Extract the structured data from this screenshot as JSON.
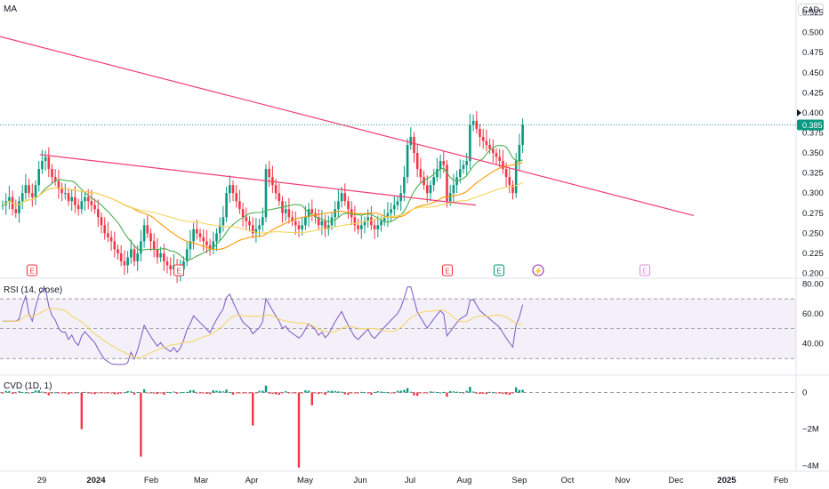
{
  "main_pane": {
    "indicator_label": "MA",
    "currency": "CAD",
    "current_price": "0.385",
    "marker_price": "0.400"
  },
  "rsi_pane": {
    "label": "RSI (14, close)"
  },
  "cvd_pane": {
    "label": "CVD (1D, 1)"
  },
  "event_markers": [
    {
      "letter": "E",
      "color": "#f23645"
    },
    {
      "letter": "E",
      "color": "#f23645"
    },
    {
      "letter": "E",
      "color": "#f23645"
    },
    {
      "letter": "E",
      "color": "#089981"
    },
    {
      "letter": "⚡",
      "color": "#9c27b0"
    },
    {
      "letter": "E",
      "color": "#e08ee0"
    }
  ],
  "colors": {
    "up": "#089981",
    "down": "#f23645",
    "trendline": "#f23f76",
    "ma_fast": "#4caf50",
    "ma_mid": "#ff9800",
    "ma_slow": "#f5d45c",
    "rsi": "#7e57c2",
    "rsi_ma": "#f5d45c"
  },
  "chart_data": [
    {
      "type": "candlestick",
      "title": "MA",
      "currency": "CAD",
      "x_ticks": [
        "29",
        "2024",
        "Feb",
        "Mar",
        "Apr",
        "May",
        "Jun",
        "Jul",
        "Aug",
        "Sep",
        "Oct",
        "Nov",
        "Dec",
        "2025",
        "Feb"
      ],
      "y_ticks": [
        "0.200",
        "0.225",
        "0.250",
        "0.275",
        "0.300",
        "0.325",
        "0.350",
        "0.375",
        "0.400",
        "0.425",
        "0.450",
        "0.475",
        "0.500",
        "0.525"
      ],
      "ylim": [
        0.195,
        0.535
      ],
      "last_close": 0.385,
      "closes": [
        0.285,
        0.29,
        0.295,
        0.28,
        0.275,
        0.29,
        0.3,
        0.31,
        0.3,
        0.295,
        0.31,
        0.33,
        0.34,
        0.345,
        0.33,
        0.32,
        0.315,
        0.305,
        0.3,
        0.3,
        0.29,
        0.295,
        0.285,
        0.28,
        0.29,
        0.295,
        0.29,
        0.285,
        0.28,
        0.27,
        0.26,
        0.25,
        0.245,
        0.24,
        0.23,
        0.225,
        0.215,
        0.21,
        0.22,
        0.23,
        0.215,
        0.225,
        0.24,
        0.26,
        0.25,
        0.24,
        0.23,
        0.22,
        0.225,
        0.215,
        0.21,
        0.205,
        0.21,
        0.2,
        0.205,
        0.215,
        0.23,
        0.24,
        0.255,
        0.25,
        0.245,
        0.24,
        0.235,
        0.23,
        0.24,
        0.25,
        0.26,
        0.27,
        0.3,
        0.31,
        0.3,
        0.29,
        0.28,
        0.27,
        0.265,
        0.26,
        0.25,
        0.255,
        0.26,
        0.27,
        0.33,
        0.32,
        0.31,
        0.3,
        0.29,
        0.275,
        0.28,
        0.27,
        0.265,
        0.26,
        0.255,
        0.26,
        0.27,
        0.28,
        0.275,
        0.27,
        0.26,
        0.265,
        0.255,
        0.26,
        0.27,
        0.28,
        0.29,
        0.3,
        0.29,
        0.28,
        0.27,
        0.26,
        0.255,
        0.26,
        0.265,
        0.27,
        0.26,
        0.255,
        0.26,
        0.265,
        0.27,
        0.275,
        0.28,
        0.285,
        0.29,
        0.3,
        0.32,
        0.36,
        0.37,
        0.35,
        0.33,
        0.32,
        0.31,
        0.3,
        0.31,
        0.32,
        0.33,
        0.34,
        0.335,
        0.29,
        0.3,
        0.31,
        0.32,
        0.33,
        0.335,
        0.34,
        0.385,
        0.39,
        0.38,
        0.37,
        0.365,
        0.36,
        0.355,
        0.35,
        0.345,
        0.34,
        0.33,
        0.32,
        0.31,
        0.3,
        0.34,
        0.36,
        0.385
      ],
      "series": [
        {
          "name": "Trendline 1",
          "points": [
            [
              0,
              0.495
            ],
            [
              780,
              0.272
            ]
          ]
        },
        {
          "name": "Trendline 2",
          "points": [
            [
              45,
              0.348
            ],
            [
              535,
              0.285
            ]
          ]
        }
      ]
    },
    {
      "type": "line",
      "title": "RSI (14, close)",
      "y_ticks": [
        "40.00",
        "60.00",
        "80.00"
      ],
      "ylim": [
        20,
        82
      ],
      "bands": [
        30,
        50,
        70
      ],
      "rsi_end": 66
    },
    {
      "type": "bar",
      "title": "CVD (1D, 1)",
      "y_ticks": [
        "0",
        "−2M",
        "−4M"
      ],
      "ylim": [
        -4200000,
        800000
      ]
    }
  ]
}
